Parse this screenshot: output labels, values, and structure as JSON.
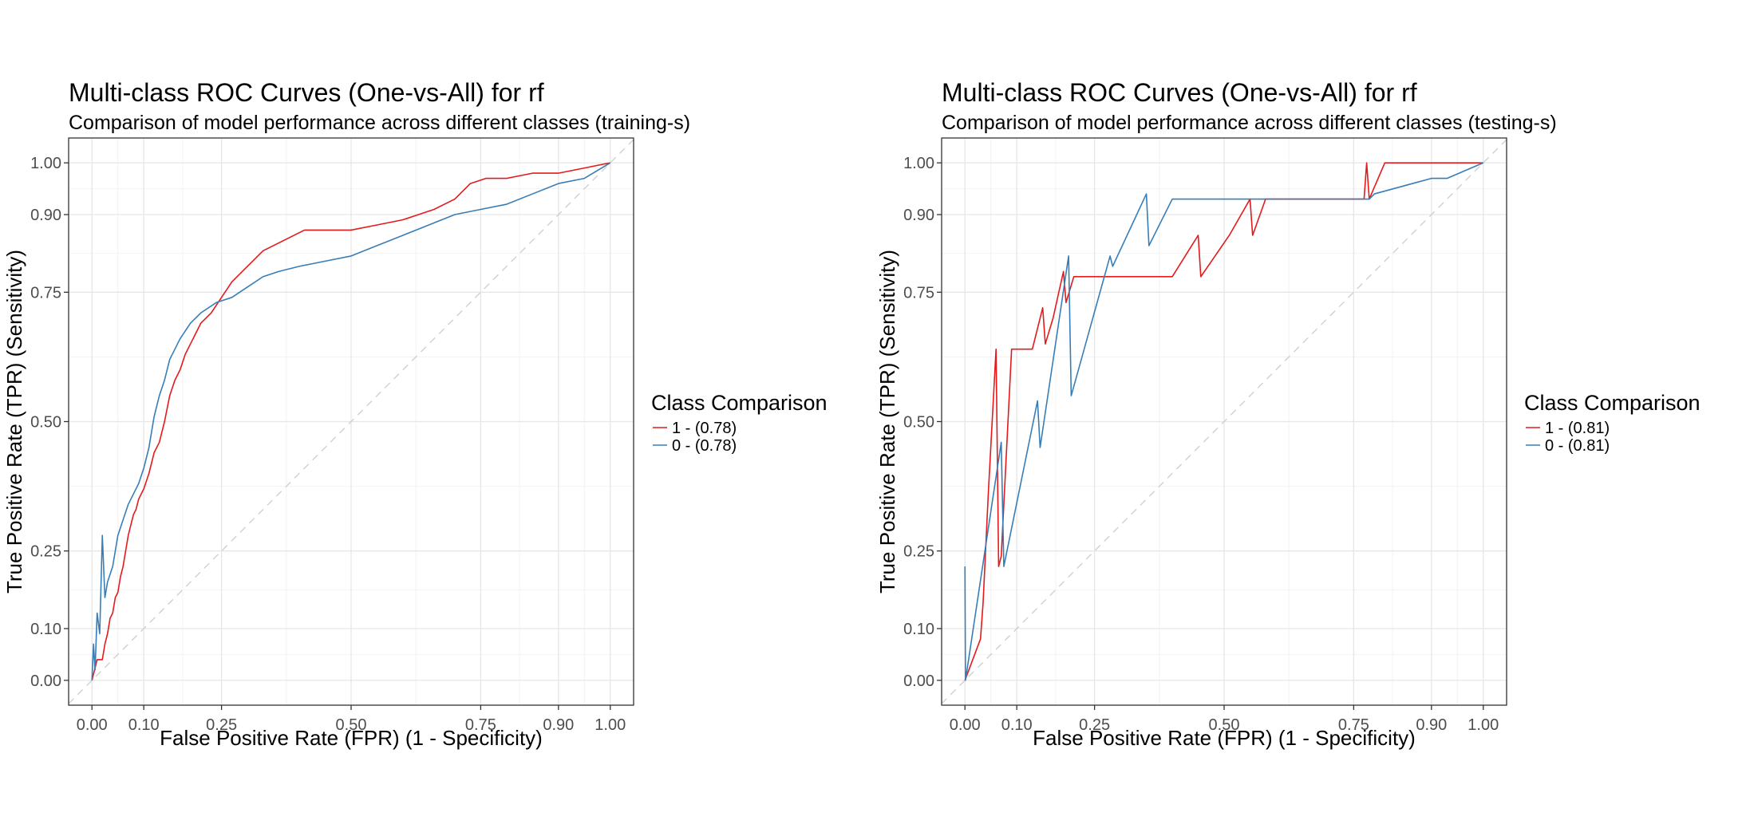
{
  "chart_data": [
    {
      "type": "line",
      "title": "Multi-class ROC Curves (One-vs-All) for rf",
      "subtitle": "Comparison of model performance across different classes (training-s)",
      "xlabel": "False Positive Rate (FPR) (1 - Specificity)",
      "ylabel": "True Positive Rate (TPR) (Sensitivity)",
      "xlim": [
        0,
        1
      ],
      "ylim": [
        0,
        1
      ],
      "x_ticks": [
        0.0,
        0.1,
        0.25,
        0.5,
        0.75,
        0.9,
        1.0
      ],
      "x_tick_labels": [
        "0.00",
        "0.10",
        "0.25",
        "0.50",
        "0.75",
        "0.90",
        "1.00"
      ],
      "y_ticks": [
        0.0,
        0.1,
        0.25,
        0.5,
        0.75,
        0.9,
        1.0
      ],
      "y_tick_labels": [
        "0.00",
        "0.10",
        "0.25",
        "0.50",
        "0.75",
        "0.90",
        "1.00"
      ],
      "grid": true,
      "diagonal_reference": true,
      "legend_title": "Class Comparison",
      "legend_position": "right",
      "series": [
        {
          "name": "1 - (0.78)",
          "color": "#E41A1C",
          "points": [
            [
              0,
              0
            ],
            [
              0.005,
              0.02
            ],
            [
              0.01,
              0.04
            ],
            [
              0.02,
              0.04
            ],
            [
              0.025,
              0.07
            ],
            [
              0.03,
              0.09
            ],
            [
              0.035,
              0.12
            ],
            [
              0.04,
              0.13
            ],
            [
              0.045,
              0.16
            ],
            [
              0.05,
              0.17
            ],
            [
              0.055,
              0.2
            ],
            [
              0.06,
              0.22
            ],
            [
              0.065,
              0.25
            ],
            [
              0.07,
              0.28
            ],
            [
              0.075,
              0.3
            ],
            [
              0.08,
              0.32
            ],
            [
              0.085,
              0.33
            ],
            [
              0.09,
              0.35
            ],
            [
              0.1,
              0.37
            ],
            [
              0.11,
              0.4
            ],
            [
              0.12,
              0.44
            ],
            [
              0.13,
              0.46
            ],
            [
              0.14,
              0.5
            ],
            [
              0.15,
              0.55
            ],
            [
              0.16,
              0.58
            ],
            [
              0.17,
              0.6
            ],
            [
              0.18,
              0.63
            ],
            [
              0.19,
              0.65
            ],
            [
              0.2,
              0.67
            ],
            [
              0.21,
              0.69
            ],
            [
              0.23,
              0.71
            ],
            [
              0.25,
              0.74
            ],
            [
              0.27,
              0.77
            ],
            [
              0.29,
              0.79
            ],
            [
              0.31,
              0.81
            ],
            [
              0.33,
              0.83
            ],
            [
              0.35,
              0.84
            ],
            [
              0.37,
              0.85
            ],
            [
              0.39,
              0.86
            ],
            [
              0.41,
              0.87
            ],
            [
              0.45,
              0.87
            ],
            [
              0.5,
              0.87
            ],
            [
              0.55,
              0.88
            ],
            [
              0.6,
              0.89
            ],
            [
              0.63,
              0.9
            ],
            [
              0.66,
              0.91
            ],
            [
              0.7,
              0.93
            ],
            [
              0.73,
              0.96
            ],
            [
              0.76,
              0.97
            ],
            [
              0.8,
              0.97
            ],
            [
              0.85,
              0.98
            ],
            [
              0.9,
              0.98
            ],
            [
              0.95,
              0.99
            ],
            [
              1,
              1
            ]
          ]
        },
        {
          "name": "0 - (0.78)",
          "color": "#377EB8",
          "points": [
            [
              0,
              0
            ],
            [
              0.003,
              0.07
            ],
            [
              0.006,
              0.02
            ],
            [
              0.01,
              0.13
            ],
            [
              0.015,
              0.09
            ],
            [
              0.02,
              0.28
            ],
            [
              0.025,
              0.16
            ],
            [
              0.03,
              0.19
            ],
            [
              0.04,
              0.22
            ],
            [
              0.05,
              0.28
            ],
            [
              0.06,
              0.31
            ],
            [
              0.07,
              0.34
            ],
            [
              0.08,
              0.36
            ],
            [
              0.09,
              0.38
            ],
            [
              0.1,
              0.41
            ],
            [
              0.11,
              0.45
            ],
            [
              0.12,
              0.51
            ],
            [
              0.13,
              0.55
            ],
            [
              0.14,
              0.58
            ],
            [
              0.15,
              0.62
            ],
            [
              0.16,
              0.64
            ],
            [
              0.17,
              0.66
            ],
            [
              0.19,
              0.69
            ],
            [
              0.21,
              0.71
            ],
            [
              0.24,
              0.73
            ],
            [
              0.27,
              0.74
            ],
            [
              0.3,
              0.76
            ],
            [
              0.33,
              0.78
            ],
            [
              0.36,
              0.79
            ],
            [
              0.4,
              0.8
            ],
            [
              0.45,
              0.81
            ],
            [
              0.5,
              0.82
            ],
            [
              0.55,
              0.84
            ],
            [
              0.6,
              0.86
            ],
            [
              0.65,
              0.88
            ],
            [
              0.7,
              0.9
            ],
            [
              0.75,
              0.91
            ],
            [
              0.8,
              0.92
            ],
            [
              0.85,
              0.94
            ],
            [
              0.9,
              0.96
            ],
            [
              0.95,
              0.97
            ],
            [
              1,
              1
            ]
          ]
        }
      ]
    },
    {
      "type": "line",
      "title": "Multi-class ROC Curves (One-vs-All) for rf",
      "subtitle": "Comparison of model performance across different classes (testing-s)",
      "xlabel": "False Positive Rate (FPR) (1 - Specificity)",
      "ylabel": "True Positive Rate (TPR) (Sensitivity)",
      "xlim": [
        0,
        1
      ],
      "ylim": [
        0,
        1
      ],
      "x_ticks": [
        0.0,
        0.1,
        0.25,
        0.5,
        0.75,
        0.9,
        1.0
      ],
      "x_tick_labels": [
        "0.00",
        "0.10",
        "0.25",
        "0.50",
        "0.75",
        "0.90",
        "1.00"
      ],
      "y_ticks": [
        0.0,
        0.1,
        0.25,
        0.5,
        0.75,
        0.9,
        1.0
      ],
      "y_tick_labels": [
        "0.00",
        "0.10",
        "0.25",
        "0.50",
        "0.75",
        "0.90",
        "1.00"
      ],
      "grid": true,
      "diagonal_reference": true,
      "legend_title": "Class Comparison",
      "legend_position": "right",
      "series": [
        {
          "name": "1 - (0.81)",
          "color": "#E41A1C",
          "points": [
            [
              0,
              0
            ],
            [
              0.03,
              0.08
            ],
            [
              0.035,
              0.15
            ],
            [
              0.045,
              0.36
            ],
            [
              0.06,
              0.64
            ],
            [
              0.065,
              0.22
            ],
            [
              0.07,
              0.24
            ],
            [
              0.09,
              0.64
            ],
            [
              0.13,
              0.64
            ],
            [
              0.15,
              0.72
            ],
            [
              0.155,
              0.65
            ],
            [
              0.17,
              0.7
            ],
            [
              0.19,
              0.79
            ],
            [
              0.195,
              0.73
            ],
            [
              0.21,
              0.78
            ],
            [
              0.4,
              0.78
            ],
            [
              0.45,
              0.86
            ],
            [
              0.455,
              0.78
            ],
            [
              0.51,
              0.86
            ],
            [
              0.55,
              0.93
            ],
            [
              0.555,
              0.86
            ],
            [
              0.58,
              0.93
            ],
            [
              0.77,
              0.93
            ],
            [
              0.775,
              1.0
            ],
            [
              0.78,
              0.93
            ],
            [
              0.81,
              1.0
            ],
            [
              1,
              1
            ]
          ]
        },
        {
          "name": "0 - (0.81)",
          "color": "#377EB8",
          "points": [
            [
              0,
              0.22
            ],
            [
              0.001,
              0
            ],
            [
              0.07,
              0.46
            ],
            [
              0.075,
              0.22
            ],
            [
              0.14,
              0.54
            ],
            [
              0.145,
              0.45
            ],
            [
              0.2,
              0.82
            ],
            [
              0.205,
              0.55
            ],
            [
              0.28,
              0.82
            ],
            [
              0.285,
              0.8
            ],
            [
              0.35,
              0.94
            ],
            [
              0.355,
              0.84
            ],
            [
              0.4,
              0.93
            ],
            [
              0.78,
              0.93
            ],
            [
              0.79,
              0.94
            ],
            [
              0.9,
              0.97
            ],
            [
              0.93,
              0.97
            ],
            [
              1,
              1
            ]
          ]
        }
      ]
    }
  ]
}
